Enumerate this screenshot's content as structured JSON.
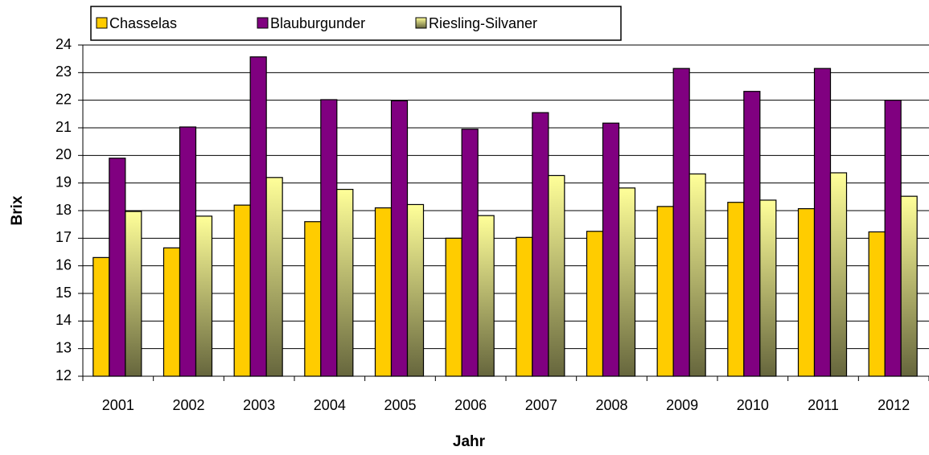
{
  "chart_data": {
    "type": "bar",
    "x_label": "Jahr",
    "y_label": "Brix",
    "categories": [
      "2001",
      "2002",
      "2003",
      "2004",
      "2005",
      "2006",
      "2007",
      "2008",
      "2009",
      "2010",
      "2011",
      "2012"
    ],
    "series": [
      {
        "name": "Chasselas",
        "color": "#ffcc00",
        "values": [
          16.3,
          16.65,
          18.2,
          17.6,
          18.1,
          17.0,
          17.03,
          17.25,
          18.15,
          18.3,
          18.07,
          17.23
        ]
      },
      {
        "name": "Blauburgunder",
        "color": "#800080",
        "values": [
          19.9,
          21.03,
          23.57,
          22.02,
          21.98,
          20.95,
          21.55,
          21.17,
          23.15,
          22.32,
          23.15,
          22.0
        ]
      },
      {
        "name": "Riesling-Silvaner",
        "color": "#ffff99",
        "gradient": true,
        "values": [
          17.97,
          17.8,
          19.2,
          18.77,
          18.22,
          17.82,
          19.27,
          18.82,
          19.33,
          18.38,
          19.37,
          18.52
        ]
      }
    ],
    "ylim": [
      12,
      24
    ],
    "yticks": [
      12,
      13,
      14,
      15,
      16,
      17,
      18,
      19,
      20,
      21,
      22,
      23,
      24
    ],
    "grid": true,
    "legend": "top"
  }
}
